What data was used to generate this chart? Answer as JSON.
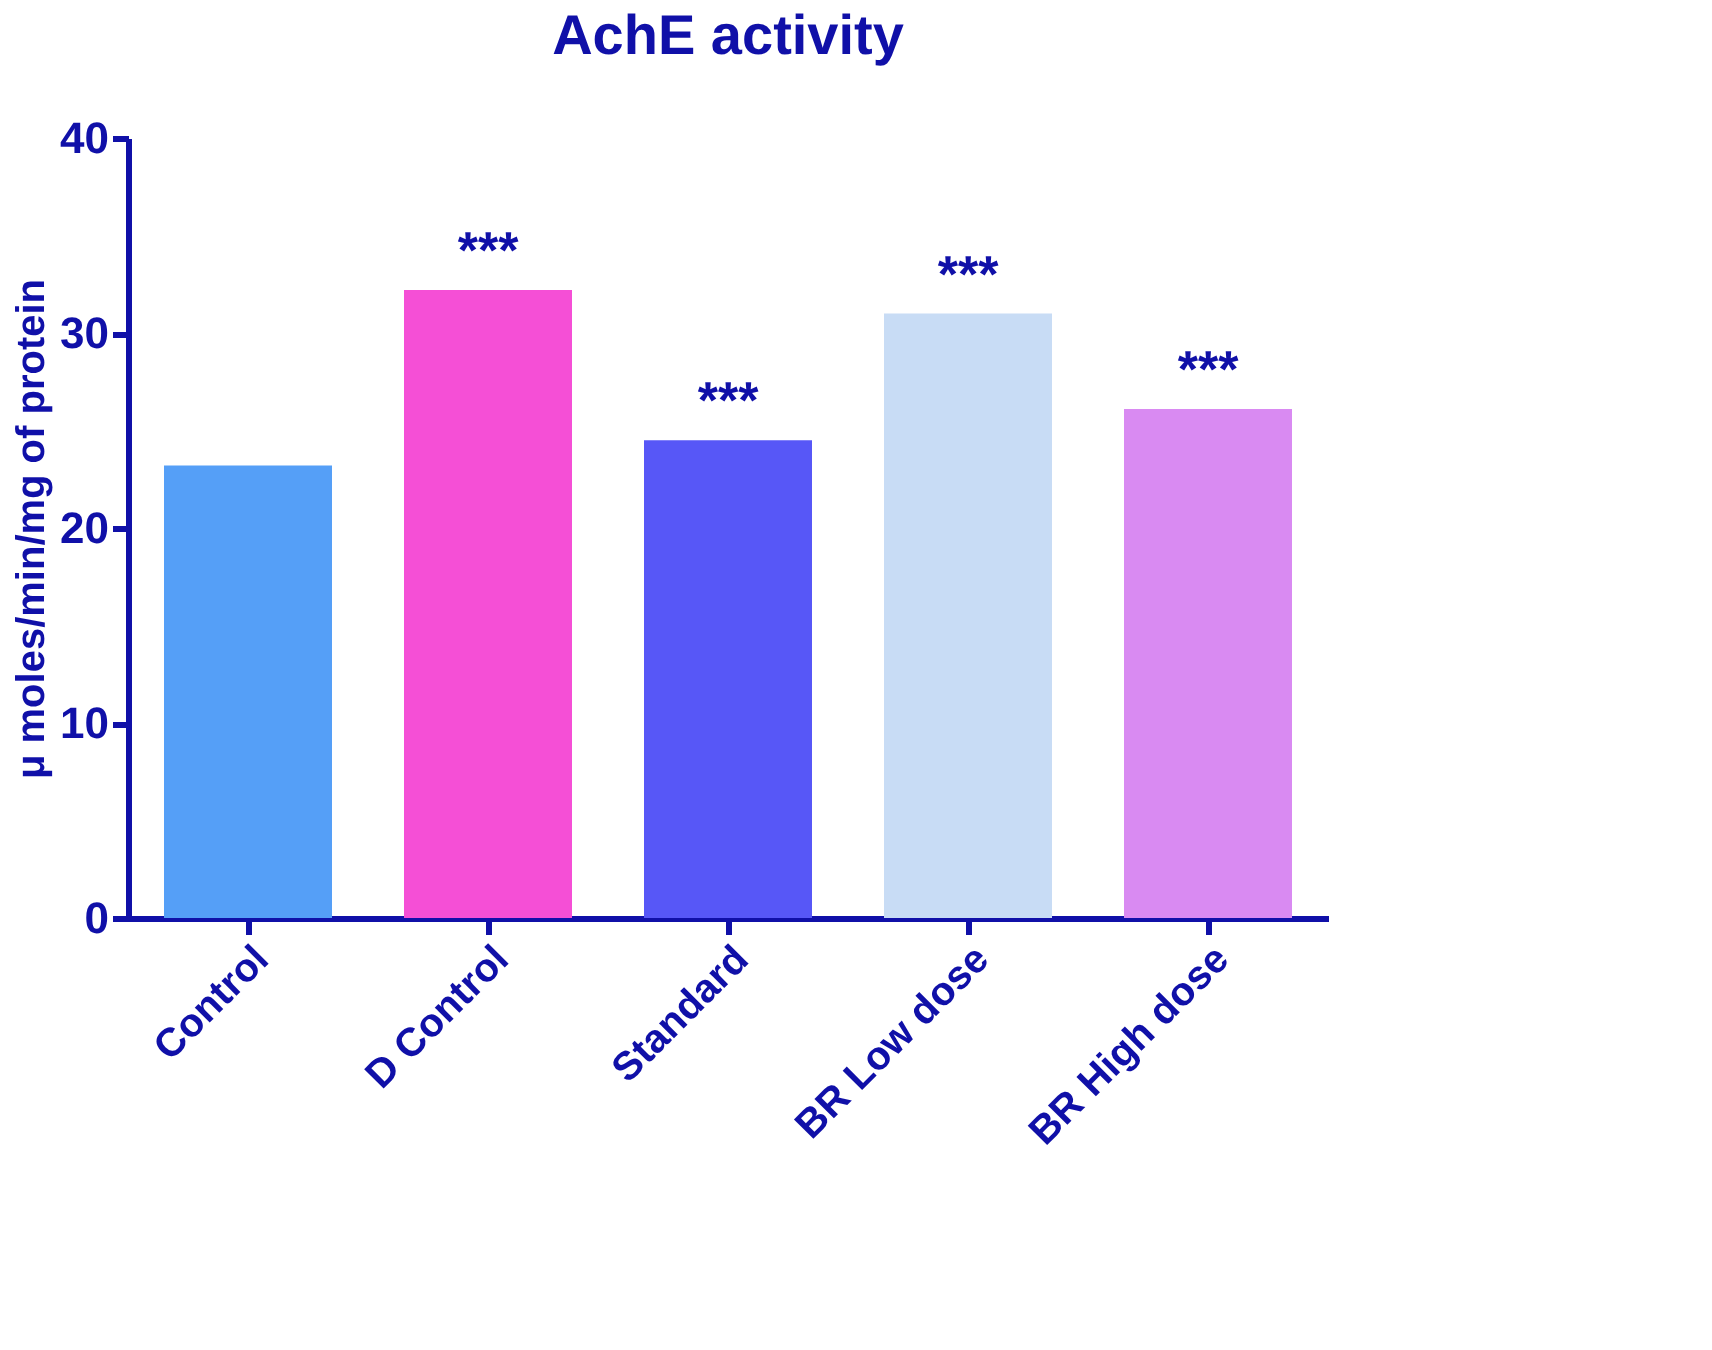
{
  "chart_data": {
    "type": "bar",
    "title": "AchE activity",
    "ylabel": "μ moles/min/mg of protein",
    "categories": [
      "Control",
      "D Control",
      "Standard",
      "BR Low dose",
      "BR High dose"
    ],
    "values": [
      23.2,
      32.2,
      24.5,
      31.0,
      26.1
    ],
    "colors": [
      "#559ff7",
      "#f54fd6",
      "#5757f7",
      "#c8dcf5",
      "#d98af2"
    ],
    "ylim": [
      0,
      40
    ],
    "yticks": [
      0,
      10,
      20,
      30,
      40
    ],
    "grid": false,
    "annotations": [
      "***",
      "***",
      "***",
      "***"
    ]
  }
}
